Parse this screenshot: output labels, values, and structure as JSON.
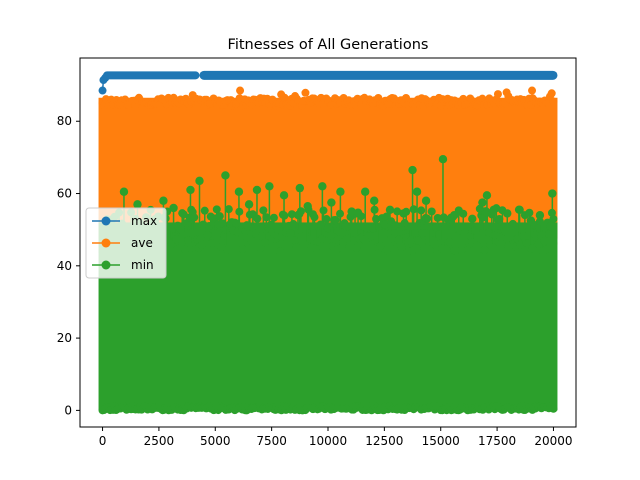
{
  "chart_data": {
    "type": "line",
    "title": "Fitnesses of All Generations",
    "xlabel": "",
    "ylabel": "",
    "xlim": [
      -1000,
      21000
    ],
    "ylim": [
      -4.6,
      97.5
    ],
    "xticks": [
      0,
      2500,
      5000,
      7500,
      10000,
      12500,
      15000,
      17500,
      20000
    ],
    "yticks": [
      0,
      20,
      40,
      60,
      80
    ],
    "generations": 20000,
    "legend": {
      "placement": "center-left"
    },
    "grid": false,
    "series": [
      {
        "name": "max",
        "color": "#1f77b4",
        "marker": "circle",
        "summary": {
          "start": 88.5,
          "early": 92.0,
          "plateau": 92.7,
          "plateau_from": 4300
        }
      },
      {
        "name": "ave",
        "color": "#ff7f0e",
        "marker": "circle",
        "summary": {
          "band_low": 47.5,
          "band_high": 86.5,
          "spike_max": 88.5
        }
      },
      {
        "name": "min",
        "color": "#2ca02c",
        "marker": "circle",
        "summary": {
          "band_low": 0,
          "band_high": 52,
          "spike_max": 69.5
        },
        "spikes": [
          [
            950,
            60.5
          ],
          [
            1550,
            57
          ],
          [
            2700,
            58
          ],
          [
            3150,
            56
          ],
          [
            3900,
            61
          ],
          [
            4300,
            63.5
          ],
          [
            5450,
            65
          ],
          [
            6050,
            60.5
          ],
          [
            6500,
            57
          ],
          [
            6850,
            61
          ],
          [
            7400,
            62
          ],
          [
            8050,
            59.5
          ],
          [
            8750,
            61.5
          ],
          [
            9100,
            56.5
          ],
          [
            9750,
            62
          ],
          [
            10150,
            57.5
          ],
          [
            10550,
            60.5
          ],
          [
            11050,
            55
          ],
          [
            11650,
            60.5
          ],
          [
            12050,
            58
          ],
          [
            12750,
            55.5
          ],
          [
            13350,
            54.5
          ],
          [
            13750,
            66.5
          ],
          [
            13950,
            60.5
          ],
          [
            14350,
            58
          ],
          [
            15100,
            69.5
          ],
          [
            15600,
            54
          ],
          [
            16400,
            53
          ],
          [
            16850,
            57.5
          ],
          [
            17050,
            59.5
          ],
          [
            17350,
            55.5
          ],
          [
            17950,
            54.5
          ],
          [
            18500,
            55.5
          ],
          [
            19000,
            52.5
          ],
          [
            19400,
            54
          ],
          [
            19950,
            60
          ]
        ]
      }
    ]
  }
}
